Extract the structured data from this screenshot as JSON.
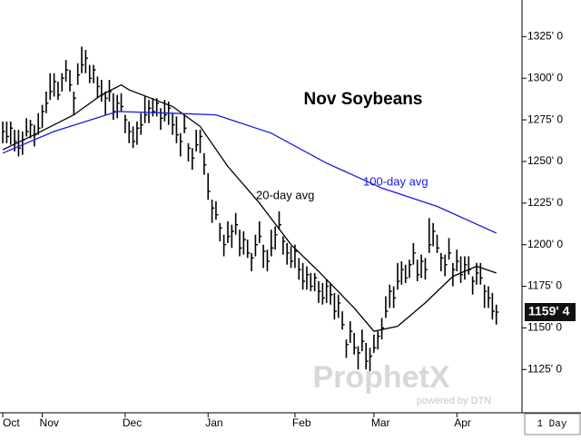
{
  "chart_data": {
    "type": "ohlc",
    "title": "Nov Soybeans",
    "watermark": "ProphetX",
    "watermark_sub": "powered by DTN",
    "interval": "1 Day",
    "last_value_label": "1159' 4",
    "xlim": [
      -0.7,
      131.5
    ],
    "xticks": [
      {
        "value": 0,
        "label": "Oct"
      },
      {
        "value": 10,
        "label": "Nov"
      },
      {
        "value": 31,
        "label": "Dec"
      },
      {
        "value": 52,
        "label": "Jan"
      },
      {
        "value": 74,
        "label": "Feb"
      },
      {
        "value": 94,
        "label": "Mar"
      },
      {
        "value": 115,
        "label": "Apr"
      }
    ],
    "ylim": [
      1099,
      1347
    ],
    "yticks": [
      {
        "value": 1125,
        "label": "1125' 0"
      },
      {
        "value": 1150,
        "label": "1150' 0"
      },
      {
        "value": 1175,
        "label": "1175' 0"
      },
      {
        "value": 1200,
        "label": "1200' 0"
      },
      {
        "value": 1225,
        "label": "1225' 0"
      },
      {
        "value": 1250,
        "label": "1250' 0"
      },
      {
        "value": 1275,
        "label": "1275' 0"
      },
      {
        "value": 1300,
        "label": "1300' 0"
      },
      {
        "value": 1325,
        "label": "1325' 0"
      }
    ],
    "color": "#000000",
    "high": [
      1274,
      1274,
      1274,
      1269,
      1269,
      1268,
      1276,
      1275,
      1272,
      1279,
      1284,
      1292,
      1303,
      1303,
      1298,
      1303,
      1311,
      1305,
      1292,
      1309,
      1319,
      1317,
      1308,
      1308,
      1301,
      1299,
      1292,
      1299,
      1291,
      1290,
      1291,
      1278,
      1274,
      1271,
      1274,
      1279,
      1289,
      1287,
      1288,
      1288,
      1282,
      1287,
      1286,
      1279,
      1277,
      1267,
      1278,
      1261,
      1258,
      1269,
      1269,
      1255,
      1243,
      1227,
      1226,
      1213,
      1206,
      1214,
      1212,
      1219,
      1209,
      1208,
      1203,
      1195,
      1206,
      1214,
      1200,
      1197,
      1209,
      1211,
      1220,
      1205,
      1201,
      1199,
      1200,
      1192,
      1189,
      1187,
      1183,
      1183,
      1178,
      1177,
      1179,
      1177,
      1171,
      1170,
      1160,
      1143,
      1154,
      1147,
      1139,
      1149,
      1141,
      1138,
      1146,
      1148,
      1156,
      1169,
      1176,
      1175,
      1189,
      1190,
      1188,
      1191,
      1201,
      1191,
      1194,
      1192,
      1216,
      1213,
      1206,
      1195,
      1194,
      1204,
      1189,
      1197,
      1193,
      1193,
      1193,
      1181,
      1189,
      1189,
      1176,
      1175,
      1171,
      1164
    ],
    "low": [
      1261,
      1261,
      1260,
      1256,
      1253,
      1254,
      1265,
      1264,
      1259,
      1266,
      1270,
      1279,
      1287,
      1289,
      1287,
      1292,
      1298,
      1292,
      1278,
      1296,
      1303,
      1303,
      1297,
      1297,
      1288,
      1286,
      1278,
      1286,
      1275,
      1276,
      1280,
      1267,
      1261,
      1258,
      1260,
      1266,
      1273,
      1273,
      1277,
      1277,
      1269,
      1274,
      1272,
      1266,
      1261,
      1253,
      1267,
      1250,
      1245,
      1256,
      1255,
      1242,
      1227,
      1213,
      1215,
      1202,
      1193,
      1201,
      1198,
      1206,
      1193,
      1194,
      1192,
      1184,
      1193,
      1201,
      1186,
      1184,
      1193,
      1197,
      1209,
      1194,
      1188,
      1186,
      1186,
      1179,
      1173,
      1173,
      1172,
      1172,
      1165,
      1164,
      1165,
      1164,
      1155,
      1156,
      1149,
      1132,
      1141,
      1134,
      1125,
      1136,
      1125,
      1124,
      1135,
      1137,
      1143,
      1156,
      1162,
      1162,
      1173,
      1176,
      1177,
      1180,
      1188,
      1178,
      1180,
      1179,
      1195,
      1199,
      1195,
      1184,
      1181,
      1191,
      1175,
      1184,
      1177,
      1179,
      1182,
      1170,
      1176,
      1176,
      1162,
      1162,
      1155,
      1152
    ],
    "close": [
      1268,
      1265,
      1270,
      1262,
      1258,
      1263,
      1268,
      1272,
      1266,
      1270,
      1280,
      1285,
      1292,
      1298,
      1290,
      1300,
      1305,
      1296,
      1288,
      1302,
      1308,
      1312,
      1300,
      1305,
      1295,
      1290,
      1288,
      1292,
      1280,
      1285,
      1283,
      1275,
      1268,
      1262,
      1270,
      1272,
      1278,
      1282,
      1280,
      1285,
      1276,
      1278,
      1282,
      1272,
      1266,
      1262,
      1270,
      1258,
      1252,
      1260,
      1265,
      1248,
      1232,
      1222,
      1218,
      1210,
      1200,
      1205,
      1208,
      1212,
      1198,
      1203,
      1195,
      1192,
      1200,
      1205,
      1196,
      1190,
      1198,
      1206,
      1212,
      1202,
      1195,
      1190,
      1196,
      1185,
      1178,
      1182,
      1175,
      1180,
      1172,
      1168,
      1175,
      1170,
      1160,
      1165,
      1152,
      1140,
      1148,
      1138,
      1135,
      1142,
      1130,
      1133,
      1138,
      1145,
      1150,
      1160,
      1172,
      1168,
      1178,
      1185,
      1180,
      1188,
      1195,
      1182,
      1190,
      1185,
      1200,
      1208,
      1198,
      1192,
      1188,
      1195,
      1185,
      1190,
      1182,
      1188,
      1185,
      1178,
      1183,
      1180,
      1172,
      1168,
      1160,
      1159.5
    ],
    "moving_averages": [
      {
        "name": "20-day avg",
        "color": "#000000",
        "x": [
          0,
          8,
          18,
          25,
          30,
          32,
          43,
          50,
          57,
          65,
          73,
          80,
          89,
          94,
          100,
          107,
          114,
          120,
          125
        ],
        "values": [
          1257,
          1266,
          1278,
          1290,
          1296,
          1293,
          1283,
          1271,
          1247,
          1225,
          1200,
          1184,
          1162,
          1148,
          1151,
          1165,
          1181,
          1187,
          1183
        ]
      },
      {
        "name": "100-day avg",
        "color": "#1a1adc",
        "x": [
          0,
          13,
          29,
          43,
          54,
          68,
          82,
          96,
          110,
          125
        ],
        "values": [
          1255,
          1268,
          1280,
          1279,
          1278,
          1267,
          1249,
          1234,
          1223,
          1207
        ]
      }
    ]
  }
}
